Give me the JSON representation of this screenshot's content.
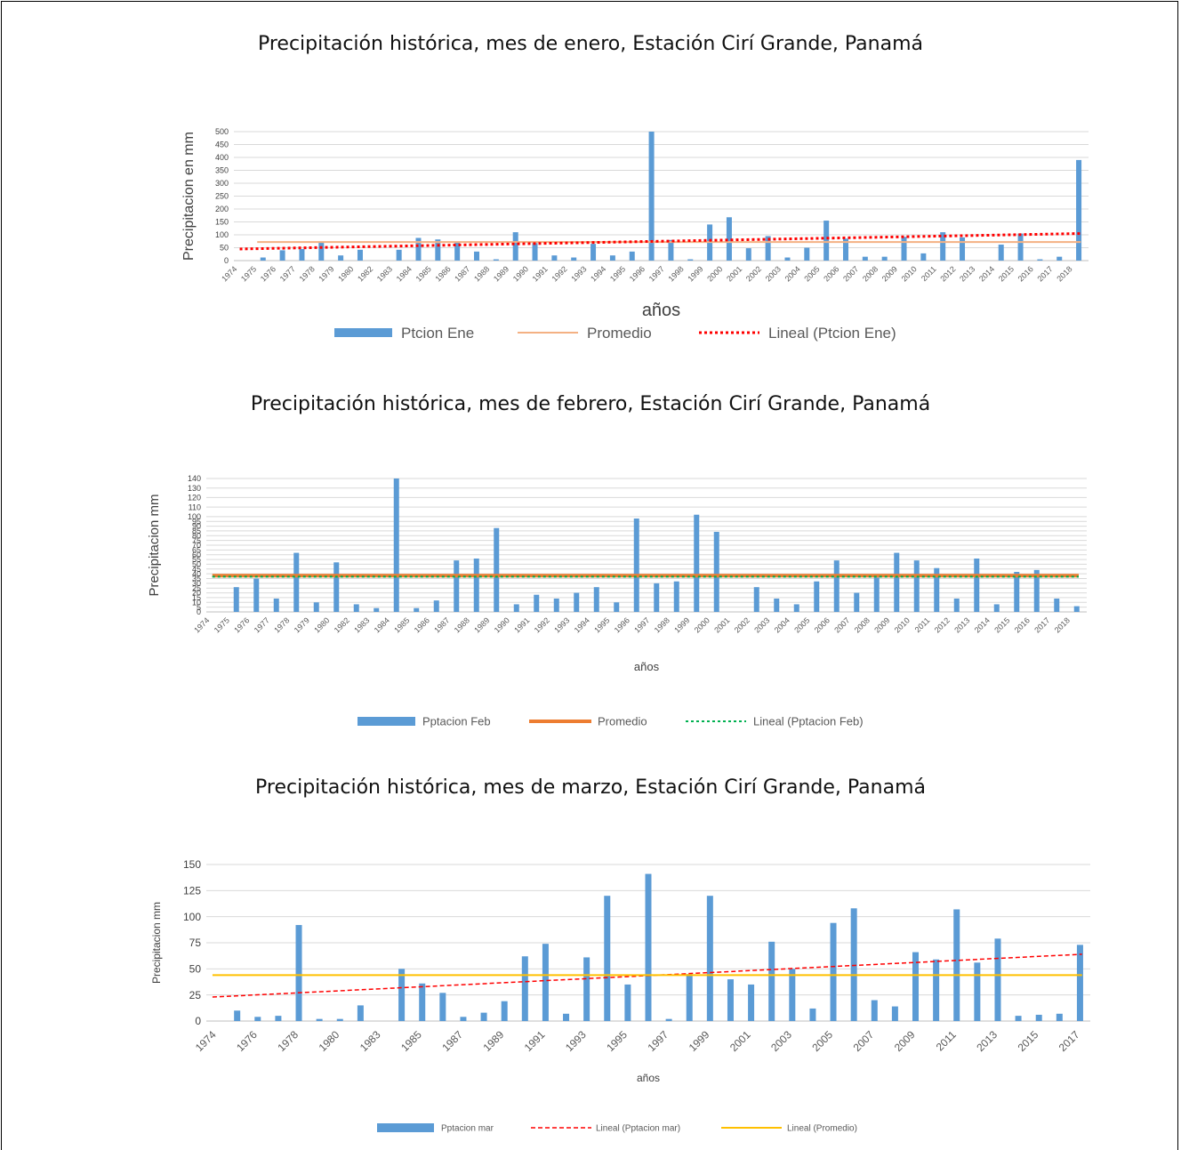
{
  "colors": {
    "bar": "#5b9bd5",
    "promedio_ene": "#f4b183",
    "promedio_feb": "#ed7d31",
    "trend_red": "#ff0000",
    "trend_green": "#00b050",
    "promedio_mar": "#ffc000",
    "grid": "#d9d9d9"
  },
  "chart_data": [
    {
      "type": "bar",
      "title": "Precipitación histórica, mes de enero, Estación Cirí Grande, Panamá",
      "xlabel": "años",
      "ylabel": "Precipitacion en mm",
      "ylim": [
        0,
        500
      ],
      "yticks": [
        0,
        50,
        100,
        150,
        200,
        250,
        300,
        350,
        400,
        450,
        500
      ],
      "grid": true,
      "legend_position": "bottom",
      "categories": [
        "1974",
        "1975",
        "1976",
        "1977",
        "1978",
        "1979",
        "1980",
        "1982",
        "1983",
        "1984",
        "1985",
        "1986",
        "1987",
        "1988",
        "1989",
        "1990",
        "1991",
        "1992",
        "1993",
        "1994",
        "1995",
        "1996",
        "1997",
        "1998",
        "1999",
        "2000",
        "2001",
        "2002",
        "2003",
        "2004",
        "2005",
        "2006",
        "2007",
        "2008",
        "2009",
        "2010",
        "2011",
        "2012",
        "2013",
        "2014",
        "2015",
        "2016",
        "2017",
        "2018"
      ],
      "series": [
        {
          "name": "Ptcion Ene",
          "kind": "bar",
          "values": [
            0,
            12,
            40,
            45,
            72,
            20,
            42,
            0,
            42,
            88,
            82,
            70,
            35,
            5,
            110,
            68,
            20,
            12,
            65,
            20,
            35,
            500,
            80,
            5,
            140,
            168,
            48,
            95,
            12,
            50,
            155,
            85,
            15,
            15,
            92,
            28,
            110,
            90,
            0,
            62,
            105,
            5,
            15,
            390
          ]
        },
        {
          "name": "Promedio",
          "kind": "line",
          "values_start_end": [
            72,
            72
          ]
        },
        {
          "name": "Lineal (Ptcion Ene)",
          "kind": "trend",
          "values_start_end": [
            45,
            105
          ]
        }
      ]
    },
    {
      "type": "bar",
      "title": "Precipitación histórica, mes de febrero, Estación Cirí Grande, Panamá",
      "xlabel": "años",
      "ylabel": "Precipitacion mm",
      "ylim": [
        0,
        140
      ],
      "yticks": [
        0,
        5,
        10,
        15,
        20,
        25,
        30,
        35,
        40,
        45,
        50,
        55,
        60,
        65,
        70,
        75,
        80,
        85,
        90,
        95,
        100,
        110,
        120,
        130,
        140
      ],
      "grid": true,
      "legend_position": "bottom",
      "categories": [
        "1974",
        "1975",
        "1976",
        "1977",
        "1978",
        "1979",
        "1980",
        "1982",
        "1983",
        "1984",
        "1985",
        "1986",
        "1987",
        "1988",
        "1989",
        "1990",
        "1991",
        "1992",
        "1993",
        "1994",
        "1995",
        "1996",
        "1997",
        "1998",
        "1999",
        "2000",
        "2001",
        "2002",
        "2003",
        "2004",
        "2005",
        "2006",
        "2007",
        "2008",
        "2009",
        "2010",
        "2011",
        "2012",
        "2013",
        "2014",
        "2015",
        "2016",
        "2017",
        "2018"
      ],
      "series": [
        {
          "name": "Pptacion Feb",
          "kind": "bar",
          "values": [
            0,
            26,
            35,
            14,
            62,
            10,
            52,
            8,
            4,
            140,
            4,
            12,
            54,
            56,
            88,
            8,
            18,
            14,
            20,
            26,
            10,
            98,
            30,
            32,
            102,
            84,
            0,
            26,
            14,
            8,
            32,
            54,
            20,
            36,
            62,
            54,
            46,
            14,
            56,
            8,
            42,
            44,
            14,
            6
          ]
        },
        {
          "name": "Promedio",
          "kind": "line",
          "values_start_end": [
            38,
            38
          ]
        },
        {
          "name": "Lineal (Pptacion Feb)",
          "kind": "trend",
          "values_start_end": [
            37,
            37
          ]
        }
      ]
    },
    {
      "type": "bar",
      "title": "Precipitación histórica, mes de marzo, Estación Cirí Grande, Panamá",
      "xlabel": "años",
      "ylabel": "Precipitacion mm",
      "ylim": [
        0,
        150
      ],
      "yticks": [
        0,
        25,
        50,
        75,
        100,
        125,
        150
      ],
      "grid": true,
      "legend_position": "bottom",
      "categories": [
        "1974",
        "1975",
        "1976",
        "1977",
        "1978",
        "1979",
        "1980",
        "1982",
        "1983",
        "1984",
        "1985",
        "1986",
        "1987",
        "1988",
        "1989",
        "1990",
        "1991",
        "1992",
        "1993",
        "1994",
        "1995",
        "1996",
        "1997",
        "1998",
        "1999",
        "2000",
        "2001",
        "2002",
        "2003",
        "2004",
        "2005",
        "2006",
        "2007",
        "2008",
        "2009",
        "2010",
        "2011",
        "2012",
        "2013",
        "2014",
        "2015",
        "2016",
        "2017"
      ],
      "xtick_labels": [
        "1974",
        "1976",
        "1978",
        "1980",
        "1983",
        "1985",
        "1987",
        "1989",
        "1991",
        "1993",
        "1995",
        "1997",
        "1999",
        "2001",
        "2003",
        "2005",
        "2007",
        "2009",
        "2011",
        "2013",
        "2015",
        "2017"
      ],
      "series": [
        {
          "name": "Pptacion mar",
          "kind": "bar",
          "values": [
            0,
            10,
            4,
            5,
            92,
            2,
            2,
            15,
            0,
            50,
            36,
            27,
            4,
            8,
            19,
            62,
            74,
            7,
            61,
            120,
            35,
            141,
            2,
            45,
            120,
            40,
            35,
            76,
            50,
            12,
            94,
            108,
            20,
            14,
            66,
            59,
            107,
            56,
            79,
            5,
            6,
            7,
            73
          ]
        },
        {
          "name": "Lineal (Pptacion mar)",
          "kind": "trend",
          "values_start_end": [
            23,
            64
          ]
        },
        {
          "name": "Lineal (Promedio)",
          "kind": "line",
          "values_start_end": [
            44,
            44
          ]
        }
      ]
    }
  ]
}
